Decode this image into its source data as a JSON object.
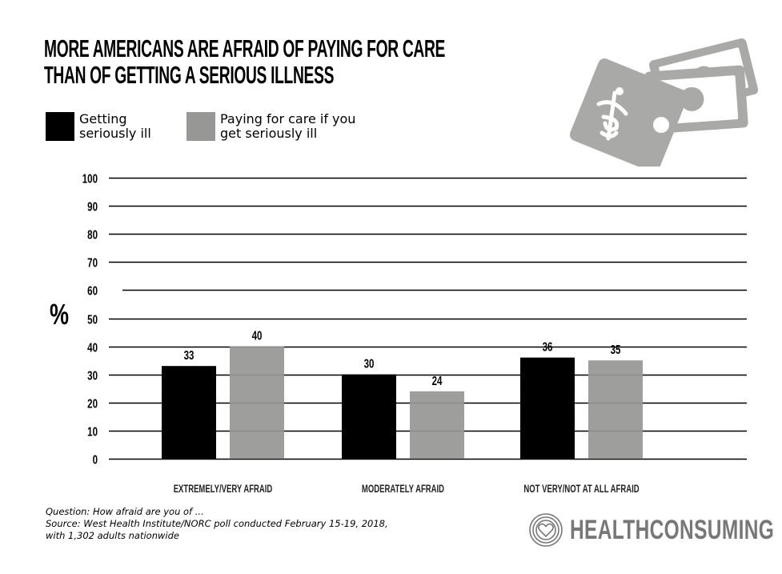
{
  "title": {
    "line1": "MORE AMERICANS ARE AFRAID OF PAYING FOR CARE",
    "line2": "THAN OF GETTING A SERIOUS ILLNESS"
  },
  "legend": [
    {
      "label_line1": "Getting",
      "label_line2": "seriously ill",
      "color": "#000000"
    },
    {
      "label_line1": "Paying for care if you",
      "label_line2": "get seriously ill",
      "color": "#979896"
    }
  ],
  "illustration": {
    "icon": "money-bills-caduceus-icon",
    "color": "#a9aaa8"
  },
  "chart_data": {
    "type": "bar",
    "title": "MORE AMERICANS ARE AFRAID OF PAYING FOR CARE THAN OF GETTING A SERIOUS ILLNESS",
    "xlabel": "",
    "ylabel": "%",
    "ylim": [
      0,
      100
    ],
    "yticks": [
      0,
      10,
      20,
      30,
      40,
      50,
      60,
      70,
      80,
      90,
      100
    ],
    "grid": true,
    "legend_position": "top-left",
    "categories": [
      "EXTREMELY/VERY AFRAID",
      "MODERATELY AFRAID",
      "NOT VERY/NOT AT ALL AFRAID"
    ],
    "series": [
      {
        "name": "Getting seriously ill",
        "color": "#000000",
        "values": [
          33,
          30,
          36
        ]
      },
      {
        "name": "Paying for care if you get seriously ill",
        "color": "#979896",
        "values": [
          40,
          24,
          35
        ]
      }
    ]
  },
  "footnote": {
    "question": "Question: How afraid are you of ...",
    "source_line1": "Source: West Health Institute/NORC poll conducted February 15-19, 2018,",
    "source_line2": "with 1,302 adults nationwide"
  },
  "brand": {
    "name": "HEALTHCONSUMING",
    "icon": "heart-rings-icon",
    "color": "#777777"
  }
}
